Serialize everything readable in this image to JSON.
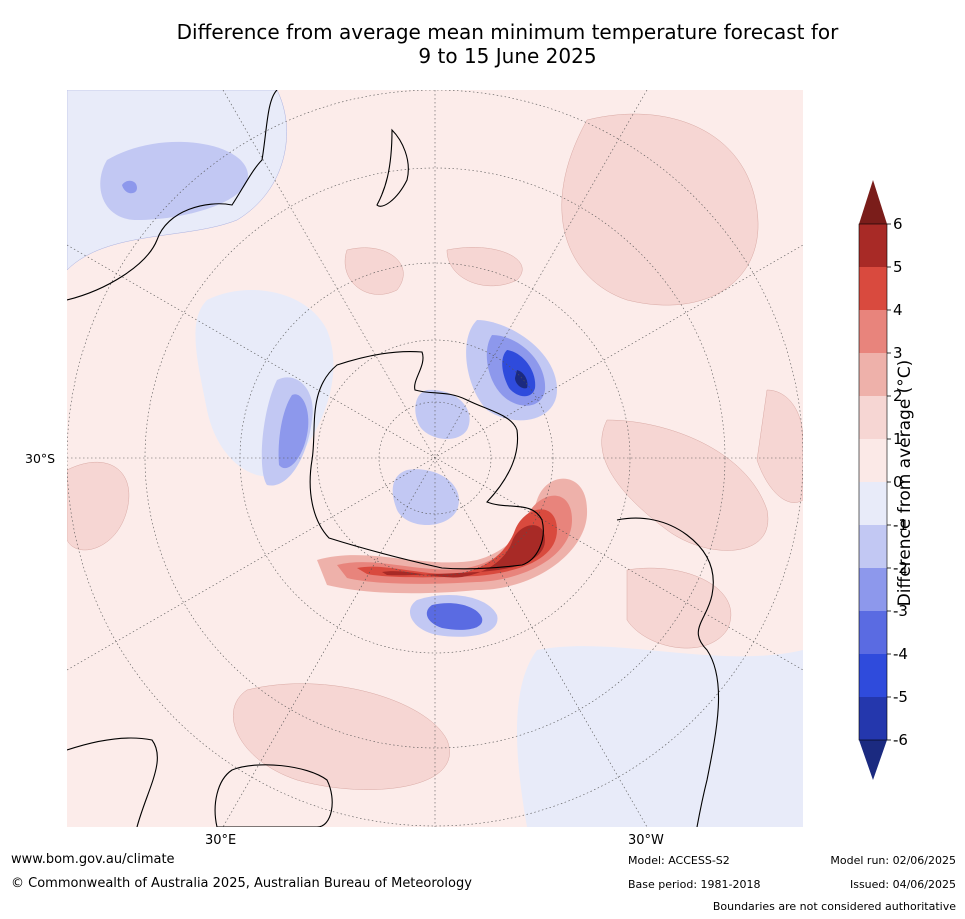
{
  "title_line1": "Difference from average mean minimum temperature forecast for",
  "title_line2": "9 to 15 June 2025",
  "map": {
    "lat_label": "30°S",
    "lon_label_left": "30°E",
    "lon_label_right": "30°W",
    "land_outline_color": "#000000",
    "graticule_color": "#555555"
  },
  "legend": {
    "axis_label": "Difference from average (°C)",
    "ticks": [
      "6",
      "5",
      "4",
      "3",
      "2",
      "1",
      "0",
      "-1",
      "-2",
      "-3",
      "-4",
      "-5",
      "-6"
    ],
    "colors": [
      "#a82a26",
      "#d94a3e",
      "#e8847c",
      "#eeb1aa",
      "#f6d6d3",
      "#fbe9e7",
      "#e8ebf9",
      "#c2c8f3",
      "#8d98ec",
      "#5a6be2",
      "#2f4bdc",
      "#2437ad"
    ],
    "over_color": "#7a1d1a",
    "under_color": "#1b2a80"
  },
  "footer": {
    "website": "www.bom.gov.au/climate",
    "copyright": "© Commonwealth of Australia 2025, Australian Bureau of Meteorology",
    "model": "Model: ACCESS-S2",
    "base_period": "Base period: 1981-2018",
    "model_run": "Model run: 02/06/2025",
    "issued": "Issued: 04/06/2025",
    "disclaimer": "Boundaries are not considered authoritative"
  }
}
